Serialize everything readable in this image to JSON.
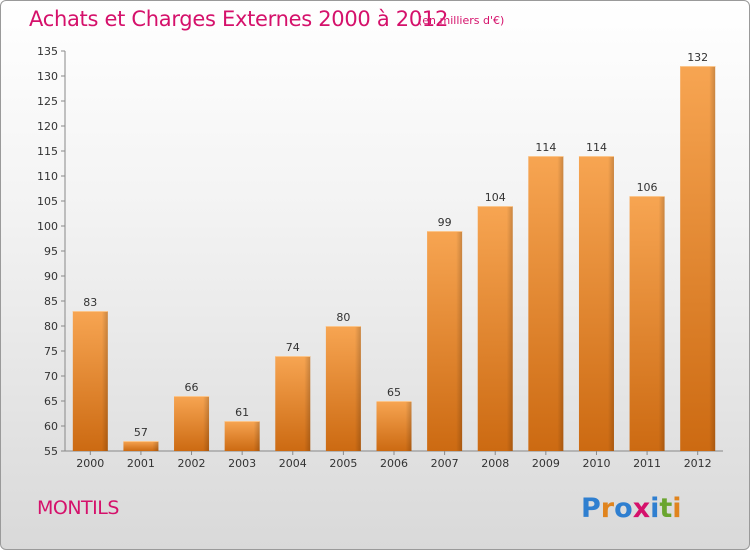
{
  "chart_data": {
    "type": "bar",
    "title": "Achats et Charges Externes 2000 à 2012",
    "subtitle": "(en milliers d'€)",
    "categories": [
      "2000",
      "2001",
      "2002",
      "2003",
      "2004",
      "2005",
      "2006",
      "2007",
      "2008",
      "2009",
      "2010",
      "2011",
      "2012"
    ],
    "values": [
      83,
      57,
      66,
      61,
      74,
      80,
      65,
      99,
      104,
      114,
      114,
      106,
      132
    ],
    "ylim": [
      55,
      135
    ],
    "yticks": [
      55,
      60,
      65,
      70,
      75,
      80,
      85,
      90,
      95,
      100,
      105,
      110,
      115,
      120,
      125,
      130,
      135
    ],
    "grid": false,
    "bar_color": "#f08a2c"
  },
  "footer": {
    "city": "MONTILS",
    "logo_text": "Proxiti"
  }
}
